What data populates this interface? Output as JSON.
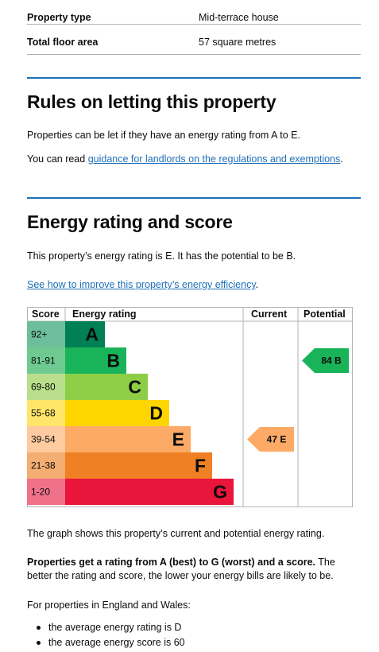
{
  "summary": {
    "rows": [
      {
        "label": "Property type",
        "value": "Mid-terrace house"
      },
      {
        "label": "Total floor area",
        "value": "57 square metres"
      }
    ]
  },
  "rules": {
    "heading": "Rules on letting this property",
    "text": "Properties can be let if they have an energy rating from A to E.",
    "guidance_prefix": "You can read ",
    "guidance_link": "guidance for landlords on the regulations and exemptions",
    "guidance_suffix": "."
  },
  "energy": {
    "heading": "Energy rating and score",
    "statement": "This property’s energy rating is E. It has the potential to be B.",
    "improve_link": "See how to improve this property’s energy efficiency",
    "improve_suffix": ".",
    "graph_caption": "The graph shows this property’s current and potential energy rating.",
    "score_bold": "Properties get a rating from A (best) to G (worst) and a score.",
    "score_rest": " The better the rating and score, the lower your energy bills are likely to be.",
    "region_text": "For properties in England and Wales:",
    "bullets": [
      "the average energy rating is D",
      "the average energy score is 60"
    ]
  },
  "chart_data": {
    "type": "bar",
    "headers": {
      "score": "Score",
      "rating": "Energy rating",
      "current": "Current",
      "potential": "Potential"
    },
    "bands": [
      {
        "band": "A",
        "range": "92+",
        "color": "#008054",
        "score_bg": "#6cbf9a"
      },
      {
        "band": "B",
        "range": "81-91",
        "color": "#19b459",
        "score_bg": "#6fca92"
      },
      {
        "band": "C",
        "range": "69-80",
        "color": "#8dce46",
        "score_bg": "#b9df8c"
      },
      {
        "band": "D",
        "range": "55-68",
        "color": "#ffd500",
        "score_bg": "#ffe66a"
      },
      {
        "band": "E",
        "range": "39-54",
        "color": "#fcaa65",
        "score_bg": "#fdcb9f"
      },
      {
        "band": "F",
        "range": "21-38",
        "color": "#ef8023",
        "score_bg": "#f4ad72"
      },
      {
        "band": "G",
        "range": "1-20",
        "color": "#e9153b",
        "score_bg": "#f0718a"
      }
    ],
    "current": {
      "score": 47,
      "band": "E",
      "label": "47 E",
      "color": "#fcaa65"
    },
    "potential": {
      "score": 84,
      "band": "B",
      "label": "84 B",
      "color": "#19b459"
    }
  }
}
